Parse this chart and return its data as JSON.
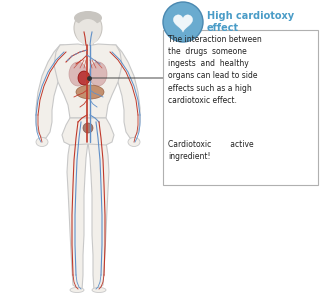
{
  "bg_color": "#ffffff",
  "title_text": "High cardiotoxy\neffect",
  "title_color": "#4a9cc7",
  "icon_bg_color": "#6aabcf",
  "box_text_main": "The interaction between\nthe  drugs  someone\ningests  and  healthy\norgans can lead to side\neffects such as a high\ncardiotoxic effect.",
  "box_text_sub": "Cardiotoxic        active\ningredient!",
  "box_border_color": "#b0b0b0",
  "box_bg_color": "#ffffff",
  "arrow_color": "#444444",
  "body_skin_color": "#f2efea",
  "body_outline_color": "#c8c8c8",
  "body_shadow_color": "#d8d5d0",
  "artery_color": "#c0392b",
  "vein_color": "#6090c8",
  "lung_color": "#d4a8a8",
  "heart_color": "#b83030",
  "liver_color": "#b87850",
  "bladder_color": "#9a6858",
  "head_color": "#c8c5c0",
  "face_color": "#e8e5e0"
}
